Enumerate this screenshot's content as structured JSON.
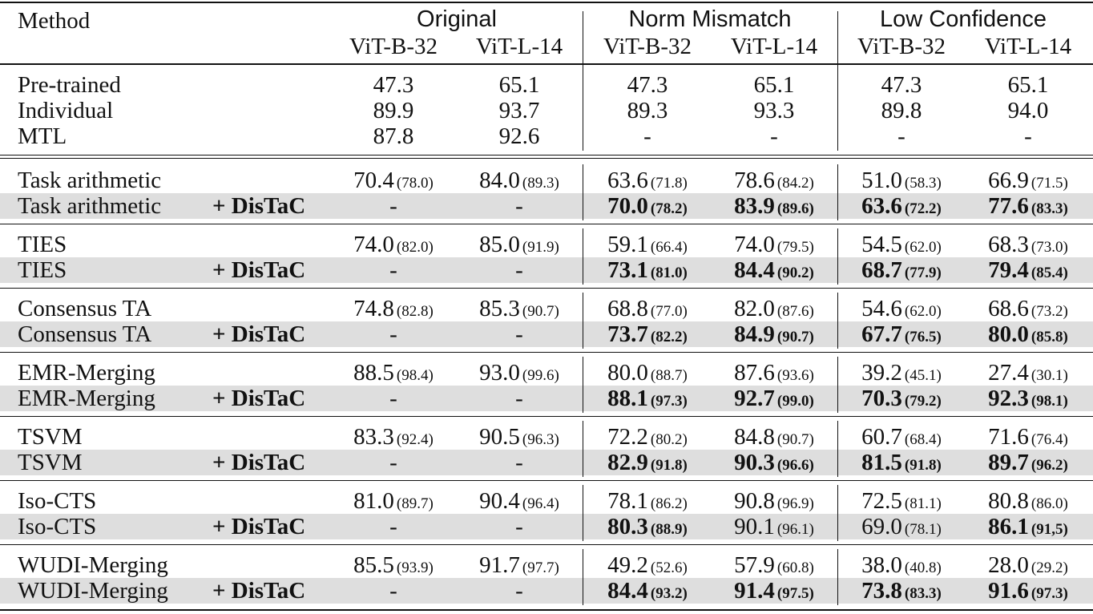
{
  "header": {
    "method_label": "Method",
    "groups": [
      "Original",
      "Norm Mismatch",
      "Low Confidence"
    ],
    "subcolumns": [
      "ViT-B-32",
      "ViT-L-14",
      "ViT-B-32",
      "ViT-L-14",
      "ViT-B-32",
      "ViT-L-14"
    ]
  },
  "baselines": [
    {
      "method": "Pre-trained",
      "values": [
        "47.3",
        "65.1",
        "47.3",
        "65.1",
        "47.3",
        "65.1"
      ]
    },
    {
      "method": "Individual",
      "values": [
        "89.9",
        "93.7",
        "89.3",
        "93.3",
        "89.8",
        "94.0"
      ]
    },
    {
      "method": "MTL",
      "values": [
        "87.8",
        "92.6",
        "-",
        "-",
        "-",
        "-"
      ]
    }
  ],
  "groups": [
    {
      "rows": [
        {
          "method": "Task arithmetic",
          "suffix": "",
          "cells": [
            {
              "v": "70.4",
              "s": "(78.0)",
              "bold": false
            },
            {
              "v": "84.0",
              "s": "(89.3)",
              "bold": false
            },
            {
              "v": "63.6",
              "s": "(71.8)",
              "bold": false
            },
            {
              "v": "78.6",
              "s": "(84.2)",
              "bold": false
            },
            {
              "v": "51.0",
              "s": "(58.3)",
              "bold": false
            },
            {
              "v": "66.9",
              "s": "(71.5)",
              "bold": false
            }
          ]
        },
        {
          "method": "Task arithmetic",
          "suffix": "+ DisTaC",
          "cells": [
            {
              "v": "-",
              "s": "",
              "bold": false
            },
            {
              "v": "-",
              "s": "",
              "bold": false
            },
            {
              "v": "70.0",
              "s": "(78.2)",
              "bold": true
            },
            {
              "v": "83.9",
              "s": "(89.6)",
              "bold": true
            },
            {
              "v": "63.6",
              "s": "(72.2)",
              "bold": true
            },
            {
              "v": "77.6",
              "s": "(83.3)",
              "bold": true
            }
          ]
        }
      ]
    },
    {
      "rows": [
        {
          "method": "TIES",
          "suffix": "",
          "cells": [
            {
              "v": "74.0",
              "s": "(82.0)",
              "bold": false
            },
            {
              "v": "85.0",
              "s": "(91.9)",
              "bold": false
            },
            {
              "v": "59.1",
              "s": "(66.4)",
              "bold": false
            },
            {
              "v": "74.0",
              "s": "(79.5)",
              "bold": false
            },
            {
              "v": "54.5",
              "s": "(62.0)",
              "bold": false
            },
            {
              "v": "68.3",
              "s": "(73.0)",
              "bold": false
            }
          ]
        },
        {
          "method": "TIES",
          "suffix": "+ DisTaC",
          "cells": [
            {
              "v": "-",
              "s": "",
              "bold": false
            },
            {
              "v": "-",
              "s": "",
              "bold": false
            },
            {
              "v": "73.1",
              "s": "(81.0)",
              "bold": true
            },
            {
              "v": "84.4",
              "s": "(90.2)",
              "bold": true
            },
            {
              "v": "68.7",
              "s": "(77.9)",
              "bold": true
            },
            {
              "v": "79.4",
              "s": "(85.4)",
              "bold": true
            }
          ]
        }
      ]
    },
    {
      "rows": [
        {
          "method": "Consensus TA",
          "suffix": "",
          "cells": [
            {
              "v": "74.8",
              "s": "(82.8)",
              "bold": false
            },
            {
              "v": "85.3",
              "s": "(90.7)",
              "bold": false
            },
            {
              "v": "68.8",
              "s": "(77.0)",
              "bold": false
            },
            {
              "v": "82.0",
              "s": "(87.6)",
              "bold": false
            },
            {
              "v": "54.6",
              "s": "(62.0)",
              "bold": false
            },
            {
              "v": "68.6",
              "s": "(73.2)",
              "bold": false
            }
          ]
        },
        {
          "method": "Consensus TA",
          "suffix": "+ DisTaC",
          "cells": [
            {
              "v": "-",
              "s": "",
              "bold": false
            },
            {
              "v": "-",
              "s": "",
              "bold": false
            },
            {
              "v": "73.7",
              "s": "(82.2)",
              "bold": true
            },
            {
              "v": "84.9",
              "s": "(90.7)",
              "bold": true
            },
            {
              "v": "67.7",
              "s": "(76.5)",
              "bold": true
            },
            {
              "v": "80.0",
              "s": "(85.8)",
              "bold": true
            }
          ]
        }
      ]
    },
    {
      "rows": [
        {
          "method": "EMR-Merging",
          "suffix": "",
          "cells": [
            {
              "v": "88.5",
              "s": "(98.4)",
              "bold": false
            },
            {
              "v": "93.0",
              "s": "(99.6)",
              "bold": false
            },
            {
              "v": "80.0",
              "s": "(88.7)",
              "bold": false
            },
            {
              "v": "87.6",
              "s": "(93.6)",
              "bold": false
            },
            {
              "v": "39.2",
              "s": "(45.1)",
              "bold": false
            },
            {
              "v": "27.4",
              "s": "(30.1)",
              "bold": false
            }
          ]
        },
        {
          "method": "EMR-Merging",
          "suffix": "+ DisTaC",
          "cells": [
            {
              "v": "-",
              "s": "",
              "bold": false
            },
            {
              "v": "-",
              "s": "",
              "bold": false
            },
            {
              "v": "88.1",
              "s": "(97.3)",
              "bold": true
            },
            {
              "v": "92.7",
              "s": "(99.0)",
              "bold": true
            },
            {
              "v": "70.3",
              "s": "(79.2)",
              "bold": true
            },
            {
              "v": "92.3",
              "s": "(98.1)",
              "bold": true
            }
          ]
        }
      ]
    },
    {
      "rows": [
        {
          "method": "TSVM",
          "suffix": "",
          "cells": [
            {
              "v": "83.3",
              "s": "(92.4)",
              "bold": false
            },
            {
              "v": "90.5",
              "s": "(96.3)",
              "bold": false
            },
            {
              "v": "72.2",
              "s": "(80.2)",
              "bold": false
            },
            {
              "v": "84.8",
              "s": "(90.7)",
              "bold": false
            },
            {
              "v": "60.7",
              "s": "(68.4)",
              "bold": false
            },
            {
              "v": "71.6",
              "s": "(76.4)",
              "bold": false
            }
          ]
        },
        {
          "method": "TSVM",
          "suffix": "+ DisTaC",
          "cells": [
            {
              "v": "-",
              "s": "",
              "bold": false
            },
            {
              "v": "-",
              "s": "",
              "bold": false
            },
            {
              "v": "82.9",
              "s": "(91.8)",
              "bold": true
            },
            {
              "v": "90.3",
              "s": "(96.6)",
              "bold": true
            },
            {
              "v": "81.5",
              "s": "(91.8)",
              "bold": true
            },
            {
              "v": "89.7",
              "s": "(96.2)",
              "bold": true
            }
          ]
        }
      ]
    },
    {
      "rows": [
        {
          "method": "Iso-CTS",
          "suffix": "",
          "cells": [
            {
              "v": "81.0",
              "s": "(89.7)",
              "bold": false
            },
            {
              "v": "90.4",
              "s": "(96.4)",
              "bold": false
            },
            {
              "v": "78.1",
              "s": "(86.2)",
              "bold": false
            },
            {
              "v": "90.8",
              "s": "(96.9)",
              "bold": false
            },
            {
              "v": "72.5",
              "s": "(81.1)",
              "bold": false
            },
            {
              "v": "80.8",
              "s": "(86.0)",
              "bold": false
            }
          ]
        },
        {
          "method": "Iso-CTS",
          "suffix": "+ DisTaC",
          "cells": [
            {
              "v": "-",
              "s": "",
              "bold": false
            },
            {
              "v": "-",
              "s": "",
              "bold": false
            },
            {
              "v": "80.3",
              "s": "(88.9)",
              "bold": true
            },
            {
              "v": "90.1",
              "s": "(96.1)",
              "bold": false
            },
            {
              "v": "69.0",
              "s": "(78.1)",
              "bold": false
            },
            {
              "v": "86.1",
              "s": "(91,5)",
              "bold": true
            }
          ]
        }
      ]
    },
    {
      "rows": [
        {
          "method": "WUDI-Merging",
          "suffix": "",
          "cells": [
            {
              "v": "85.5",
              "s": "(93.9)",
              "bold": false
            },
            {
              "v": "91.7",
              "s": "(97.7)",
              "bold": false
            },
            {
              "v": "49.2",
              "s": "(52.6)",
              "bold": false
            },
            {
              "v": "57.9",
              "s": "(60.8)",
              "bold": false
            },
            {
              "v": "38.0",
              "s": "(40.8)",
              "bold": false
            },
            {
              "v": "28.0",
              "s": "(29.2)",
              "bold": false
            }
          ]
        },
        {
          "method": "WUDI-Merging",
          "suffix": "+ DisTaC",
          "cells": [
            {
              "v": "-",
              "s": "",
              "bold": false
            },
            {
              "v": "-",
              "s": "",
              "bold": false
            },
            {
              "v": "84.4",
              "s": "(93.2)",
              "bold": true
            },
            {
              "v": "91.4",
              "s": "(97.5)",
              "bold": true
            },
            {
              "v": "73.8",
              "s": "(83.3)",
              "bold": true
            },
            {
              "v": "91.6",
              "s": "(97.3)",
              "bold": true
            }
          ]
        }
      ]
    }
  ]
}
